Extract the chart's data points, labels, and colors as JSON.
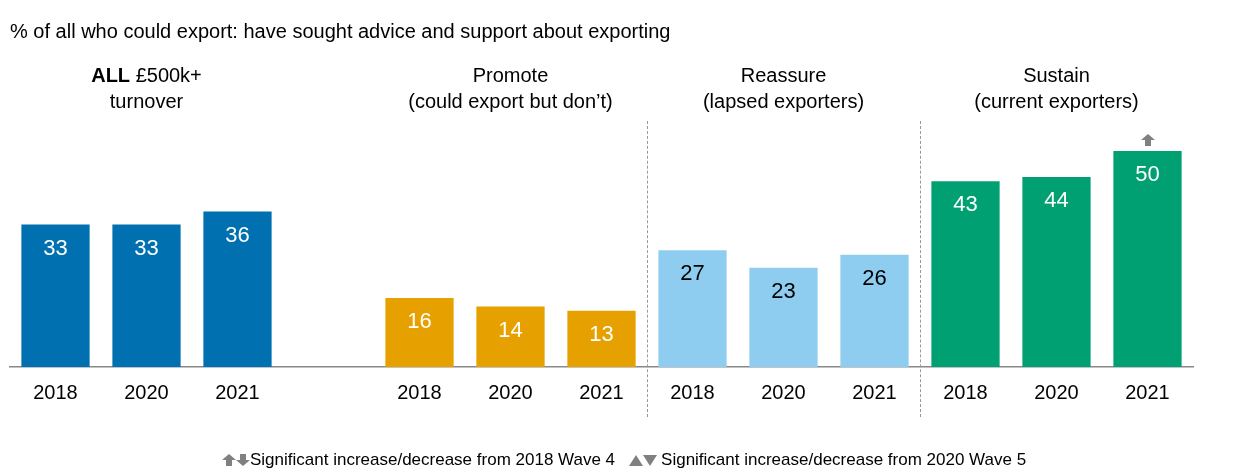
{
  "chart_data": {
    "type": "bar",
    "title": "% of all who could export: have sought advice and support about exporting",
    "categories": [
      "2018",
      "2020",
      "2021",
      null,
      "2018",
      "2020",
      "2021",
      "2018",
      "2020",
      "2021",
      "2018",
      "2020",
      "2021"
    ],
    "values": [
      33,
      33,
      36,
      null,
      16,
      14,
      13,
      27,
      23,
      26,
      43,
      44,
      50
    ],
    "colors": [
      "#0070b0",
      "#0070b0",
      "#0070b0",
      "#0070b0",
      "#e6a000",
      "#e6a000",
      "#e6a000",
      "#8ecdf0",
      "#8ecdf0",
      "#8ecdf0",
      "#00a072",
      "#00a072",
      "#00a072"
    ],
    "data_labels": true,
    "grid": false,
    "legend": false,
    "annotations": [
      "ALL £500k+\nturnover",
      "Promote\n(could export but don’t)",
      "Reassure\n(lapsed exporters)",
      "Sustain\n(current exporters)",
      "Significant increase/decrease from 2018 Wave 4",
      "Significant increase/decrease from 2020 Wave 5"
    ]
  }
}
